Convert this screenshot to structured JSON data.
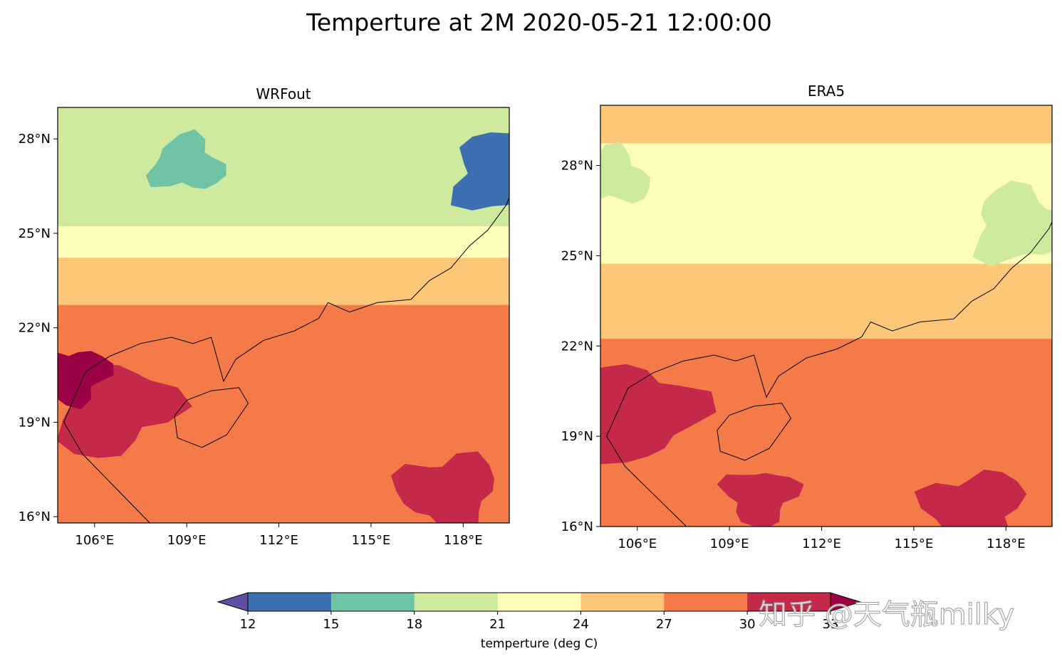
{
  "figure": {
    "suptitle": "Temperture at 2M   2020-05-21 12:00:00",
    "watermark": "知乎 @天气瓶milky"
  },
  "levels_colors": {
    "12-15": "#3e6fb0",
    "15-18": "#6fc4a6",
    "18-21": "#cdea9e",
    "21-24": "#fefdb9",
    "24-27": "#fcc777",
    "27-30": "#f47a4a",
    "30-33": "#c5294a",
    ">33": "#9b0044"
  },
  "chart_data": [
    {
      "type": "heatmap",
      "title": "WRFout",
      "xlim": [
        104.8,
        119.5
      ],
      "ylim": [
        15.8,
        29.0
      ],
      "x_ticks": [
        106,
        109,
        112,
        115,
        118
      ],
      "x_ticklabels": [
        "106°E",
        "109°E",
        "112°E",
        "115°E",
        "118°E"
      ],
      "y_ticks": [
        16,
        19,
        22,
        25,
        28
      ],
      "y_ticklabels": [
        "16°N",
        "19°N",
        "22°N",
        "25°N",
        "28°N"
      ],
      "field_description": "filled contours of 2m temperature",
      "bands": [
        {
          "color": "#cdea9e",
          "lat_top": 29.0,
          "lat_bottom": 25.0
        },
        {
          "color": "#fefdb9",
          "lat_top": 25.0,
          "lat_bottom": 24.0
        },
        {
          "color": "#fcc777",
          "lat_top": 24.0,
          "lat_bottom": 22.5
        },
        {
          "color": "#f47a4a",
          "lat_top": 22.5,
          "lat_bottom": 15.8
        }
      ],
      "blobs": [
        {
          "color": "#6fc4a6",
          "lon": 109.0,
          "lat": 27.2
        },
        {
          "color": "#3e6fb0",
          "lon": 119.2,
          "lat": 26.9
        },
        {
          "color": "#c5294a",
          "lon": 106.5,
          "lat": 19.5
        },
        {
          "color": "#9b0044",
          "lon": 105.3,
          "lat": 20.5
        },
        {
          "color": "#c5294a",
          "lon": 117.5,
          "lat": 16.8
        }
      ]
    },
    {
      "type": "heatmap",
      "title": "ERA5",
      "xlim": [
        104.8,
        119.5
      ],
      "ylim": [
        16.0,
        30.0
      ],
      "x_ticks": [
        106,
        109,
        112,
        115,
        118
      ],
      "x_ticklabels": [
        "106°E",
        "109°E",
        "112°E",
        "115°E",
        "118°E"
      ],
      "y_ticks": [
        16,
        19,
        22,
        25,
        28
      ],
      "y_ticklabels": [
        "16°N",
        "19°N",
        "22°N",
        "25°N",
        "28°N"
      ],
      "field_description": "filled contours of 2m temperature",
      "bands": [
        {
          "color": "#fcc777",
          "lat_top": 30.0,
          "lat_bottom": 28.5
        },
        {
          "color": "#fefdb9",
          "lat_top": 28.5,
          "lat_bottom": 24.5
        },
        {
          "color": "#fcc777",
          "lat_top": 24.5,
          "lat_bottom": 22.0
        },
        {
          "color": "#f47a4a",
          "lat_top": 22.0,
          "lat_bottom": 16.0
        }
      ],
      "blobs": [
        {
          "color": "#cdea9e",
          "lon": 105.2,
          "lat": 27.6
        },
        {
          "color": "#cdea9e",
          "lon": 118.5,
          "lat": 26.0
        },
        {
          "color": "#c5294a",
          "lon": 106.0,
          "lat": 19.8
        },
        {
          "color": "#c5294a",
          "lon": 110.0,
          "lat": 17.0
        },
        {
          "color": "#c5294a",
          "lon": 117.0,
          "lat": 16.6
        }
      ]
    }
  ],
  "colorbar": {
    "label": "temperture (deg C)",
    "boundaries": [
      12,
      15,
      18,
      21,
      24,
      27,
      30,
      33
    ],
    "ticklabels": [
      "12",
      "15",
      "18",
      "21",
      "24",
      "27",
      "30",
      "33"
    ],
    "under_color": "#5e4fa2",
    "over_color": "#9e0142",
    "colors": [
      "#3e6fb0",
      "#6fc4a6",
      "#cdea9e",
      "#fefdb9",
      "#fcc777",
      "#f47a4a",
      "#c5294a"
    ]
  }
}
